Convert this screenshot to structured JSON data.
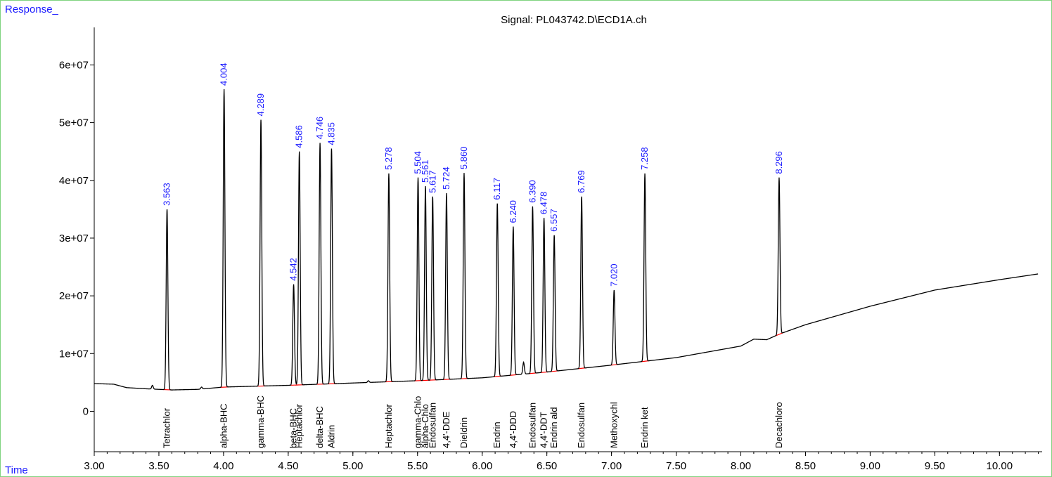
{
  "chart_data": {
    "type": "line",
    "title": "Signal: PL043742.D\\ECD1A.ch",
    "ylabel": "Response_",
    "xlabel": "Time",
    "xlim": [
      3.0,
      10.33
    ],
    "ylim": [
      -7000000,
      66500000
    ],
    "grid": false,
    "line_color": "#000000",
    "baseline_color": "#ff0000",
    "rt_label_color": "#1a1aff",
    "x_ticks": [
      {
        "value": 3.0,
        "label": "3.00"
      },
      {
        "value": 3.5,
        "label": "3.50"
      },
      {
        "value": 4.0,
        "label": "4.00"
      },
      {
        "value": 4.5,
        "label": "4.50"
      },
      {
        "value": 5.0,
        "label": "5.00"
      },
      {
        "value": 5.5,
        "label": "5.50"
      },
      {
        "value": 6.0,
        "label": "6.00"
      },
      {
        "value": 6.5,
        "label": "6.50"
      },
      {
        "value": 7.0,
        "label": "7.00"
      },
      {
        "value": 7.5,
        "label": "7.50"
      },
      {
        "value": 8.0,
        "label": "8.00"
      },
      {
        "value": 8.5,
        "label": "8.50"
      },
      {
        "value": 9.0,
        "label": "9.00"
      },
      {
        "value": 9.5,
        "label": "9.50"
      },
      {
        "value": 10.0,
        "label": "10.00"
      }
    ],
    "y_ticks": [
      {
        "value": 0,
        "label": "0"
      },
      {
        "value": 10000000,
        "label": "1e+07"
      },
      {
        "value": 20000000,
        "label": "2e+07"
      },
      {
        "value": 30000000,
        "label": "3e+07"
      },
      {
        "value": 40000000,
        "label": "4e+07"
      },
      {
        "value": 50000000,
        "label": "5e+07"
      },
      {
        "value": 60000000,
        "label": "6e+07"
      }
    ],
    "baseline": [
      {
        "x": 3.0,
        "y": 4800000
      },
      {
        "x": 3.15,
        "y": 4700000
      },
      {
        "x": 3.25,
        "y": 4100000
      },
      {
        "x": 3.4,
        "y": 3900000
      },
      {
        "x": 3.6,
        "y": 3700000
      },
      {
        "x": 3.8,
        "y": 3800000
      },
      {
        "x": 4.0,
        "y": 4200000
      },
      {
        "x": 4.5,
        "y": 4500000
      },
      {
        "x": 5.0,
        "y": 4900000
      },
      {
        "x": 5.5,
        "y": 5300000
      },
      {
        "x": 6.0,
        "y": 5800000
      },
      {
        "x": 6.5,
        "y": 6800000
      },
      {
        "x": 7.0,
        "y": 8000000
      },
      {
        "x": 7.5,
        "y": 9300000
      },
      {
        "x": 8.0,
        "y": 11300000
      },
      {
        "x": 8.1,
        "y": 12500000
      },
      {
        "x": 8.2,
        "y": 12400000
      },
      {
        "x": 8.3,
        "y": 13400000
      },
      {
        "x": 8.5,
        "y": 15000000
      },
      {
        "x": 9.0,
        "y": 18200000
      },
      {
        "x": 9.5,
        "y": 21000000
      },
      {
        "x": 10.0,
        "y": 22800000
      },
      {
        "x": 10.3,
        "y": 23800000
      }
    ],
    "minor_bumps": [
      {
        "x": 3.45,
        "y": 4500000
      },
      {
        "x": 3.83,
        "y": 4200000
      },
      {
        "x": 5.12,
        "y": 5300000
      },
      {
        "x": 6.32,
        "y": 8500000
      }
    ],
    "peaks": [
      {
        "rt": 3.563,
        "label": "3.563",
        "apex": 35000000,
        "compound": "Tetrachlor"
      },
      {
        "rt": 4.004,
        "label": "4.004",
        "apex": 55800000,
        "compound": "alpha-BHC"
      },
      {
        "rt": 4.289,
        "label": "4.289",
        "apex": 50500000,
        "compound": "gamma-BHC"
      },
      {
        "rt": 4.542,
        "label": "4.542",
        "apex": 22000000,
        "compound": "beta-BHC"
      },
      {
        "rt": 4.586,
        "label": "4.586",
        "apex": 45000000,
        "compound": "Heptachlor"
      },
      {
        "rt": 4.746,
        "label": "4.746",
        "apex": 46500000,
        "compound": "delta-BHC"
      },
      {
        "rt": 4.835,
        "label": "4.835",
        "apex": 45500000,
        "compound": "Aldrin"
      },
      {
        "rt": 5.278,
        "label": "5.278",
        "apex": 41200000,
        "compound": "Heptachlor"
      },
      {
        "rt": 5.504,
        "label": "5.504",
        "apex": 40500000,
        "compound": "gamma-Chlo"
      },
      {
        "rt": 5.561,
        "label": "5.561",
        "apex": 39000000,
        "compound": "alpha-Chlo"
      },
      {
        "rt": 5.617,
        "label": "5.617",
        "apex": 37200000,
        "compound": "Endosulfan"
      },
      {
        "rt": 5.724,
        "label": "5.724",
        "apex": 37800000,
        "compound": "4,4'-DDE"
      },
      {
        "rt": 5.86,
        "label": "5.860",
        "apex": 41300000,
        "compound": "Dieldrin"
      },
      {
        "rt": 6.117,
        "label": "6.117",
        "apex": 36000000,
        "compound": "Endrin"
      },
      {
        "rt": 6.24,
        "label": "6.240",
        "apex": 32000000,
        "compound": "4,4'-DDD"
      },
      {
        "rt": 6.39,
        "label": "6.390",
        "apex": 35500000,
        "compound": "Endosulfan"
      },
      {
        "rt": 6.478,
        "label": "6.478",
        "apex": 33500000,
        "compound": "4,4'-DDT"
      },
      {
        "rt": 6.557,
        "label": "6.557",
        "apex": 30500000,
        "compound": "Endrin ald"
      },
      {
        "rt": 6.769,
        "label": "6.769",
        "apex": 37200000,
        "compound": "Endosulfan"
      },
      {
        "rt": 7.02,
        "label": "7.020",
        "apex": 21000000,
        "compound": "Methoxychl"
      },
      {
        "rt": 7.258,
        "label": "7.258",
        "apex": 41200000,
        "compound": "Endrin ket"
      },
      {
        "rt": 8.296,
        "label": "8.296",
        "apex": 40500000,
        "compound": "Decachloro"
      }
    ]
  }
}
